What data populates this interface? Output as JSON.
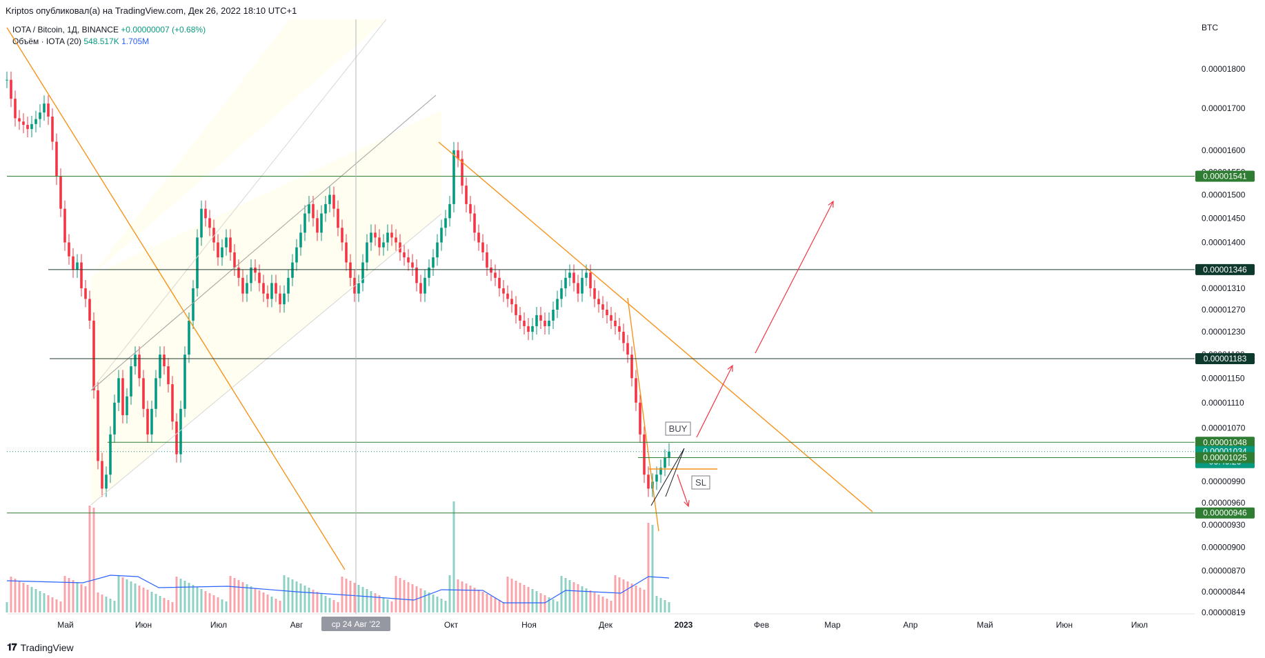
{
  "header": {
    "attribution": "Kriptos опубликовал(а) на TradingView.com, Дек 26, 2022 18:10 UTC+1"
  },
  "legend": {
    "symbol_line": "IOTA / Bitcoin, 1Д, BINANCE",
    "change": "+0.00000007 (+0.68%)",
    "volume_label": "Объём · IOTA (20)",
    "volume_value": "548.517K",
    "volume_ma": "1.705M"
  },
  "footer": {
    "brand": "TradingView"
  },
  "colors": {
    "up": "#089981",
    "down": "#f23645",
    "trend": "#f7931a",
    "hline": "#2e7d32",
    "channel": "#9e9e9e",
    "arrow": "#f23645",
    "volume_ma": "#2962ff"
  },
  "chart_data": {
    "type": "candlestick",
    "y_unit": "BTC",
    "y_scale": "log",
    "y_ticks": [
      "0.00001800",
      "0.00001700",
      "0.00001600",
      "0.00001550",
      "0.00001500",
      "0.00001450",
      "0.00001400",
      "0.00001350",
      "0.00001310",
      "0.00001270",
      "0.00001230",
      "0.00001190",
      "0.00001150",
      "0.00001110",
      "0.00001070",
      "0.00001030",
      "0.00000990",
      "0.00000960",
      "0.00000930",
      "0.00000900",
      "0.00000870",
      "0.00000844",
      "0.00000819"
    ],
    "x_labels": [
      "Май",
      "Июн",
      "Июл",
      "Авг",
      "Окт",
      "Ноя",
      "Дек",
      "2023",
      "Фев",
      "Мар",
      "Апр",
      "Май",
      "Июн",
      "Июл"
    ],
    "crosshair_date": "ср 24 Авг '22",
    "price_labels": [
      {
        "value": "0.00001541",
        "style": "support"
      },
      {
        "value": "0.00001346",
        "style": "dark"
      },
      {
        "value": "0.00001183",
        "style": "dark"
      },
      {
        "value": "0.00001048",
        "style": "support"
      },
      {
        "value": "0.00001034",
        "style": "current",
        "sub": "06:49:26"
      },
      {
        "value": "0.00001025",
        "style": "support"
      },
      {
        "value": "0.00000946",
        "style": "support"
      }
    ],
    "horizontal_levels": [
      "0.00001541",
      "0.00001346",
      "0.00001183",
      "0.00001048",
      "0.00001025",
      "0.00000946"
    ],
    "annotations": [
      {
        "text": "BUY"
      },
      {
        "text": "SL"
      }
    ],
    "approx_closes": [
      1772,
      1724,
      1676,
      1668,
      1660,
      1650,
      1662,
      1674,
      1690,
      1712,
      1680,
      1620,
      1540,
      1470,
      1400,
      1372,
      1346,
      1360,
      1310,
      1290,
      1250,
      1130,
      1020,
      980,
      1000,
      1060,
      1110,
      1150,
      1090,
      1120,
      1170,
      1190,
      1150,
      1100,
      1060,
      1100,
      1150,
      1190,
      1170,
      1140,
      1080,
      1030,
      1100,
      1190,
      1250,
      1310,
      1410,
      1470,
      1450,
      1430,
      1400,
      1370,
      1390,
      1410,
      1380,
      1350,
      1330,
      1300,
      1320,
      1350,
      1340,
      1320,
      1300,
      1290,
      1320,
      1300,
      1280,
      1300,
      1330,
      1360,
      1390,
      1420,
      1460,
      1480,
      1450,
      1420,
      1460,
      1480,
      1500,
      1470,
      1430,
      1400,
      1360,
      1330,
      1300,
      1320,
      1360,
      1400,
      1420,
      1410,
      1390,
      1400,
      1420,
      1410,
      1400,
      1380,
      1370,
      1360,
      1350,
      1320,
      1300,
      1330,
      1350,
      1370,
      1400,
      1430,
      1450,
      1480,
      1600,
      1580,
      1520,
      1480,
      1460,
      1420,
      1400,
      1380,
      1350,
      1340,
      1330,
      1310,
      1300,
      1290,
      1280,
      1260,
      1250,
      1240,
      1230,
      1240,
      1260,
      1250,
      1240,
      1250,
      1270,
      1290,
      1310,
      1330,
      1340,
      1320,
      1300,
      1330,
      1340,
      1310,
      1290,
      1280,
      1270,
      1260,
      1250,
      1240,
      1230,
      1210,
      1190,
      1150,
      1110,
      1060,
      1000,
      980,
      990,
      1000,
      1010,
      1025,
      1034
    ]
  }
}
